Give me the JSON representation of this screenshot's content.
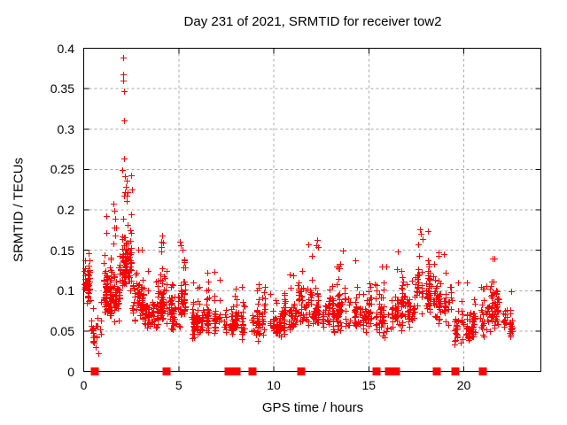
{
  "chart_data": {
    "type": "scatter",
    "title": "Day 231 of 2021, SRMTID for receiver tow2",
    "xlabel": "GPS time / hours",
    "ylabel": "SRMTID / TECUs",
    "xlim": [
      0,
      24.05
    ],
    "ylim": [
      0,
      0.4
    ],
    "xtick_values": [
      0,
      5,
      10,
      15,
      20
    ],
    "xtick_labels": [
      "0",
      "5",
      "10",
      "15",
      "20"
    ],
    "ytick_values": [
      0,
      0.05,
      0.1,
      0.15,
      0.2,
      0.25,
      0.3,
      0.35,
      0.4
    ],
    "ytick_labels": [
      "0",
      "0.05",
      "0.1",
      "0.15",
      "0.2",
      "0.25",
      "0.3",
      "0.35",
      "0.4"
    ],
    "grid": true,
    "legend": "none",
    "marker": "plus",
    "point_color": "#ff0000",
    "grid_color": "#a8a8a8",
    "axis_color": "#000000",
    "text_color": "#000000",
    "background": "#ffffff",
    "seed": 20211231,
    "bin_format": [
      "x_start",
      "x_end",
      "count",
      "band_low",
      "band_high",
      "peak",
      "tail_fraction"
    ],
    "density_bins": [
      [
        0.02,
        0.32,
        48,
        0.08,
        0.155,
        0.165,
        0.05
      ],
      [
        0.32,
        0.92,
        26,
        0.032,
        0.09,
        0.1,
        0.05
      ],
      [
        0.92,
        1.32,
        55,
        0.06,
        0.16,
        0.196,
        0.06
      ],
      [
        1.32,
        1.92,
        80,
        0.055,
        0.165,
        0.212,
        0.06
      ],
      [
        1.92,
        2.52,
        95,
        0.085,
        0.225,
        0.252,
        0.1
      ],
      [
        2.52,
        3.12,
        70,
        0.055,
        0.14,
        0.158,
        0.06
      ],
      [
        3.12,
        3.92,
        62,
        0.045,
        0.115,
        0.132,
        0.05
      ],
      [
        3.92,
        4.62,
        70,
        0.05,
        0.145,
        0.172,
        0.06
      ],
      [
        4.62,
        5.02,
        38,
        0.045,
        0.11,
        0.122,
        0.05
      ],
      [
        5.02,
        5.42,
        45,
        0.055,
        0.15,
        0.163,
        0.06
      ],
      [
        5.42,
        6.42,
        65,
        0.035,
        0.1,
        0.117,
        0.05
      ],
      [
        6.42,
        7.32,
        60,
        0.04,
        0.11,
        0.128,
        0.05
      ],
      [
        7.32,
        8.32,
        62,
        0.035,
        0.105,
        0.12,
        0.05
      ],
      [
        8.32,
        9.32,
        56,
        0.035,
        0.1,
        0.112,
        0.05
      ],
      [
        9.32,
        10.42,
        68,
        0.04,
        0.095,
        0.107,
        0.05
      ],
      [
        10.42,
        11.02,
        50,
        0.04,
        0.11,
        0.126,
        0.05
      ],
      [
        11.02,
        11.72,
        55,
        0.05,
        0.125,
        0.142,
        0.06
      ],
      [
        11.72,
        12.52,
        60,
        0.05,
        0.13,
        0.165,
        0.07
      ],
      [
        12.52,
        13.32,
        56,
        0.04,
        0.115,
        0.132,
        0.05
      ],
      [
        13.32,
        14.02,
        55,
        0.045,
        0.125,
        0.152,
        0.06
      ],
      [
        14.02,
        15.12,
        70,
        0.04,
        0.125,
        0.142,
        0.05
      ],
      [
        15.12,
        16.02,
        56,
        0.035,
        0.115,
        0.132,
        0.05
      ],
      [
        16.02,
        16.82,
        56,
        0.04,
        0.13,
        0.152,
        0.06
      ],
      [
        16.82,
        17.42,
        45,
        0.05,
        0.12,
        0.132,
        0.05
      ],
      [
        17.42,
        18.32,
        72,
        0.06,
        0.15,
        0.178,
        0.07
      ],
      [
        18.32,
        19.32,
        65,
        0.05,
        0.14,
        0.156,
        0.06
      ],
      [
        19.32,
        20.32,
        60,
        0.03,
        0.09,
        0.115,
        0.05
      ],
      [
        20.32,
        21.22,
        56,
        0.035,
        0.095,
        0.108,
        0.05
      ],
      [
        21.22,
        22.02,
        60,
        0.04,
        0.12,
        0.147,
        0.06
      ],
      [
        22.02,
        22.62,
        36,
        0.04,
        0.09,
        0.1,
        0.04
      ]
    ],
    "outlier_points": [
      [
        2.07,
        0.389
      ],
      [
        2.07,
        0.368
      ],
      [
        2.08,
        0.36
      ],
      [
        2.1,
        0.347
      ],
      [
        2.12,
        0.311
      ],
      [
        2.14,
        0.264
      ],
      [
        2.05,
        0.249
      ],
      [
        2.17,
        0.242
      ],
      [
        2.27,
        0.236
      ],
      [
        2.21,
        0.229
      ],
      [
        2.32,
        0.222
      ],
      [
        2.12,
        0.218
      ],
      [
        1.17,
        0.192
      ],
      [
        1.57,
        0.208
      ],
      [
        1.62,
        0.199
      ],
      [
        1.66,
        0.189
      ],
      [
        1.71,
        0.178
      ],
      [
        4.12,
        0.168
      ],
      [
        4.17,
        0.159
      ],
      [
        5.07,
        0.161
      ],
      [
        12.28,
        0.163
      ],
      [
        12.31,
        0.154
      ],
      [
        13.64,
        0.15
      ],
      [
        16.52,
        0.148
      ],
      [
        17.71,
        0.176
      ],
      [
        17.76,
        0.17
      ],
      [
        17.83,
        0.164
      ],
      [
        18.93,
        0.145
      ],
      [
        21.6,
        0.14
      ],
      [
        0.62,
        0.03
      ],
      [
        0.79,
        0.022
      ]
    ],
    "zero_flag_markers": {
      "marker": "filled-square",
      "y": 0,
      "x": [
        0.57,
        4.38,
        7.6,
        8.02,
        8.88,
        11.44,
        15.42,
        16.05,
        16.13,
        16.21,
        16.29,
        16.37,
        16.45,
        18.56,
        19.58,
        20.98
      ]
    }
  }
}
